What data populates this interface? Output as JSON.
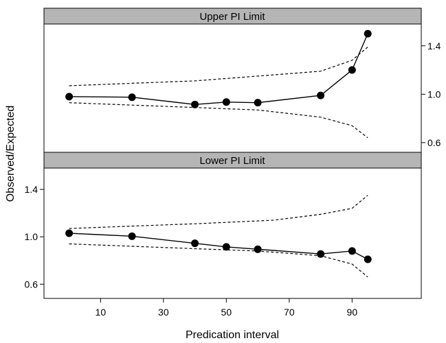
{
  "chart_data": {
    "type": "line",
    "xlabel": "Predication interval",
    "ylabel": "Observed/Expected",
    "x_ticks": [
      10,
      30,
      50,
      70,
      90
    ],
    "xlim": [
      -8,
      112
    ],
    "panels": [
      {
        "title": "Upper PI Limit",
        "ylim": [
          0.52,
          1.58
        ],
        "y_ticks": [
          0.6,
          1.0,
          1.4
        ],
        "y_tick_labels": [
          "0.6",
          "1.0",
          "1.4"
        ],
        "y_axis_side": "right",
        "series": [
          {
            "style": "line-with-points",
            "x": [
              0,
              20,
              40,
              50,
              60,
              80,
              90,
              95
            ],
            "values": [
              0.98,
              0.975,
              0.915,
              0.935,
              0.93,
              0.99,
              1.2,
              1.5
            ]
          },
          {
            "style": "dashed",
            "x": [
              0,
              20,
              40,
              60,
              80,
              90,
              95
            ],
            "values": [
              1.07,
              1.09,
              1.11,
              1.15,
              1.19,
              1.28,
              1.39
            ]
          },
          {
            "style": "dashed",
            "x": [
              0,
              20,
              40,
              60,
              80,
              90,
              95
            ],
            "values": [
              0.93,
              0.91,
              0.89,
              0.87,
              0.81,
              0.74,
              0.64
            ]
          }
        ]
      },
      {
        "title": "Lower PI Limit",
        "ylim": [
          0.48,
          1.58
        ],
        "y_ticks": [
          0.6,
          1.0,
          1.4
        ],
        "y_tick_labels": [
          "0.6",
          "1.0",
          "1.4"
        ],
        "y_axis_side": "left",
        "series": [
          {
            "style": "line-with-points",
            "x": [
              0,
              20,
              40,
              50,
              60,
              80,
              90,
              95
            ],
            "values": [
              1.03,
              1.005,
              0.945,
              0.915,
              0.895,
              0.855,
              0.88,
              0.81
            ]
          },
          {
            "style": "dashed",
            "x": [
              0,
              20,
              40,
              65,
              80,
              90,
              95
            ],
            "values": [
              1.07,
              1.09,
              1.11,
              1.14,
              1.19,
              1.24,
              1.35
            ]
          },
          {
            "style": "dashed",
            "x": [
              0,
              20,
              40,
              60,
              80,
              90,
              95
            ],
            "values": [
              0.94,
              0.92,
              0.9,
              0.88,
              0.84,
              0.77,
              0.66
            ]
          }
        ]
      }
    ]
  }
}
